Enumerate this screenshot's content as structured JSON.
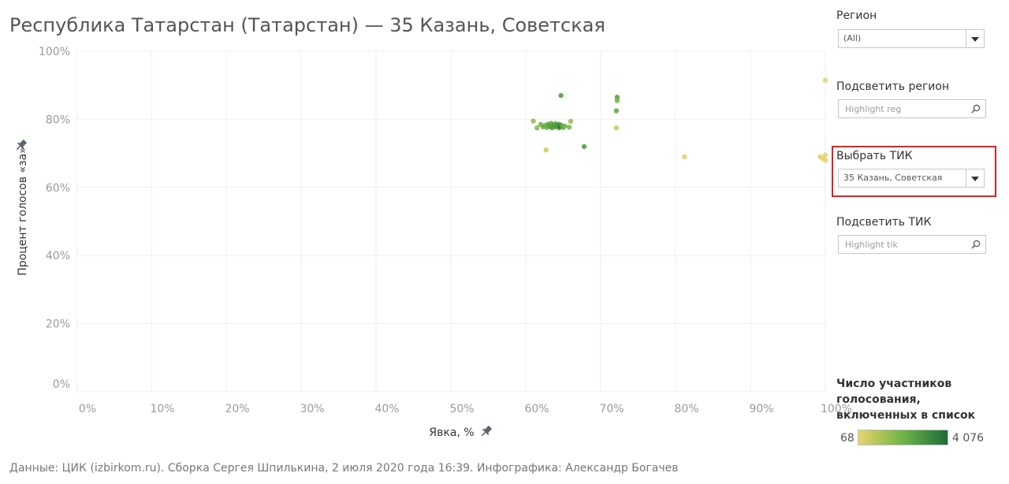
{
  "title": "Республика Татарстан (Татарстан) — 35 Казань, Советская",
  "footer": "Данные: ЦИК (izbirkom.ru). Сборка Сергея Шпилькина, 2 июля 2020 года 16:39. Инфографика: Александр Богачев",
  "controls": {
    "region": {
      "label": "Регион",
      "value": "(All)"
    },
    "highlight_region": {
      "label": "Подсветить регион",
      "placeholder": "Highlight reg"
    },
    "select_tik": {
      "label": "Выбрать ТИК",
      "value": "35 Казань, Советская"
    },
    "highlight_tik": {
      "label": "Подсветить ТИК",
      "placeholder": "Highlight tik"
    }
  },
  "legend": {
    "title": "Число участников голосования, включенных в список",
    "min_label": "68",
    "max_label": "4 076",
    "min_value": 68,
    "max_value": 4076,
    "color_low": "#e8d36a",
    "color_mid": "#6fb447",
    "color_high": "#1f6b3a"
  },
  "chart_data": {
    "type": "scatter",
    "xlabel": "Явка, %",
    "ylabel": "Процент голосов «за»",
    "xlim": [
      0,
      100
    ],
    "ylim": [
      0,
      100
    ],
    "x_ticks": [
      "0%",
      "10%",
      "20%",
      "30%",
      "40%",
      "50%",
      "60%",
      "70%",
      "80%",
      "90%",
      "100%"
    ],
    "y_ticks": [
      "0%",
      "20%",
      "40%",
      "60%",
      "80%",
      "100%"
    ],
    "grid": true,
    "points": [
      {
        "x": 61.0,
        "y": 79.5,
        "n": 1500
      },
      {
        "x": 61.5,
        "y": 77.5,
        "n": 1600
      },
      {
        "x": 62.0,
        "y": 78.5,
        "n": 2000
      },
      {
        "x": 62.3,
        "y": 77.8,
        "n": 2200
      },
      {
        "x": 62.6,
        "y": 78.2,
        "n": 2300
      },
      {
        "x": 62.8,
        "y": 77.6,
        "n": 2100
      },
      {
        "x": 63.0,
        "y": 78.6,
        "n": 2500
      },
      {
        "x": 63.2,
        "y": 77.9,
        "n": 2600
      },
      {
        "x": 63.4,
        "y": 78.8,
        "n": 2400
      },
      {
        "x": 63.5,
        "y": 77.5,
        "n": 2700
      },
      {
        "x": 63.7,
        "y": 78.3,
        "n": 2900
      },
      {
        "x": 63.9,
        "y": 77.8,
        "n": 2800
      },
      {
        "x": 64.0,
        "y": 78.7,
        "n": 2600
      },
      {
        "x": 64.2,
        "y": 78.1,
        "n": 3100
      },
      {
        "x": 64.4,
        "y": 77.5,
        "n": 2500
      },
      {
        "x": 64.5,
        "y": 78.5,
        "n": 3000
      },
      {
        "x": 64.6,
        "y": 77.9,
        "n": 4076
      },
      {
        "x": 64.8,
        "y": 78.2,
        "n": 2400
      },
      {
        "x": 65.0,
        "y": 77.6,
        "n": 2200
      },
      {
        "x": 65.2,
        "y": 78.0,
        "n": 2000
      },
      {
        "x": 65.8,
        "y": 77.7,
        "n": 1800
      },
      {
        "x": 66.0,
        "y": 79.4,
        "n": 1400
      },
      {
        "x": 62.7,
        "y": 71.0,
        "n": 500
      },
      {
        "x": 64.7,
        "y": 87.0,
        "n": 2600
      },
      {
        "x": 67.8,
        "y": 72.0,
        "n": 2700
      },
      {
        "x": 72.2,
        "y": 86.5,
        "n": 2600
      },
      {
        "x": 72.2,
        "y": 85.5,
        "n": 2000
      },
      {
        "x": 72.1,
        "y": 82.5,
        "n": 2400
      },
      {
        "x": 72.1,
        "y": 77.5,
        "n": 600
      },
      {
        "x": 81.2,
        "y": 69.0,
        "n": 200
      },
      {
        "x": 99.3,
        "y": 69.0,
        "n": 150
      },
      {
        "x": 99.7,
        "y": 68.5,
        "n": 120
      },
      {
        "x": 100.0,
        "y": 69.5,
        "n": 100
      },
      {
        "x": 100.0,
        "y": 68.0,
        "n": 80
      },
      {
        "x": 100.0,
        "y": 91.5,
        "n": 68
      }
    ]
  }
}
